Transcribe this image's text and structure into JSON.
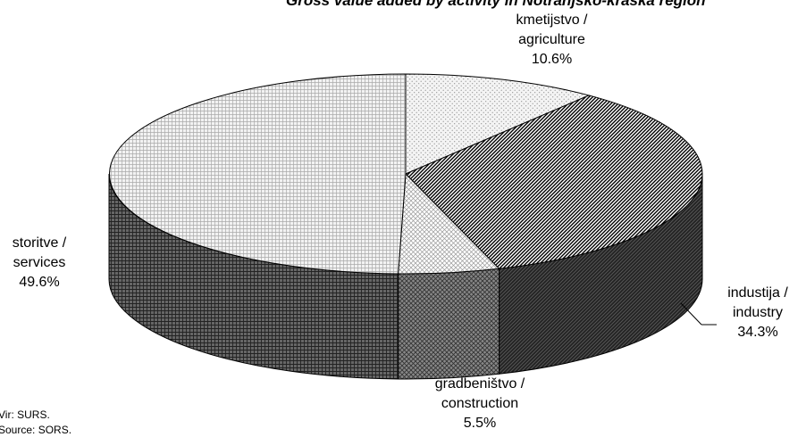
{
  "chart_data": {
    "type": "pie",
    "title": "Gross value added by activity in Notranjsko-kraška region",
    "slices": [
      {
        "line1": "kmetijstvo /",
        "line2": "agriculture",
        "value": "10.6%",
        "pct": 10.6
      },
      {
        "line1": "industija /",
        "line2": "industry",
        "value": "34.3%",
        "pct": 34.3
      },
      {
        "line1": "gradbeništvo /",
        "line2": "construction",
        "value": "5.5%",
        "pct": 5.5
      },
      {
        "line1": "storitve /",
        "line2": "services",
        "value": "49.6%",
        "pct": 49.6
      }
    ]
  },
  "source": {
    "sl": "Vir: SURS.",
    "en": "Source: SORS."
  }
}
